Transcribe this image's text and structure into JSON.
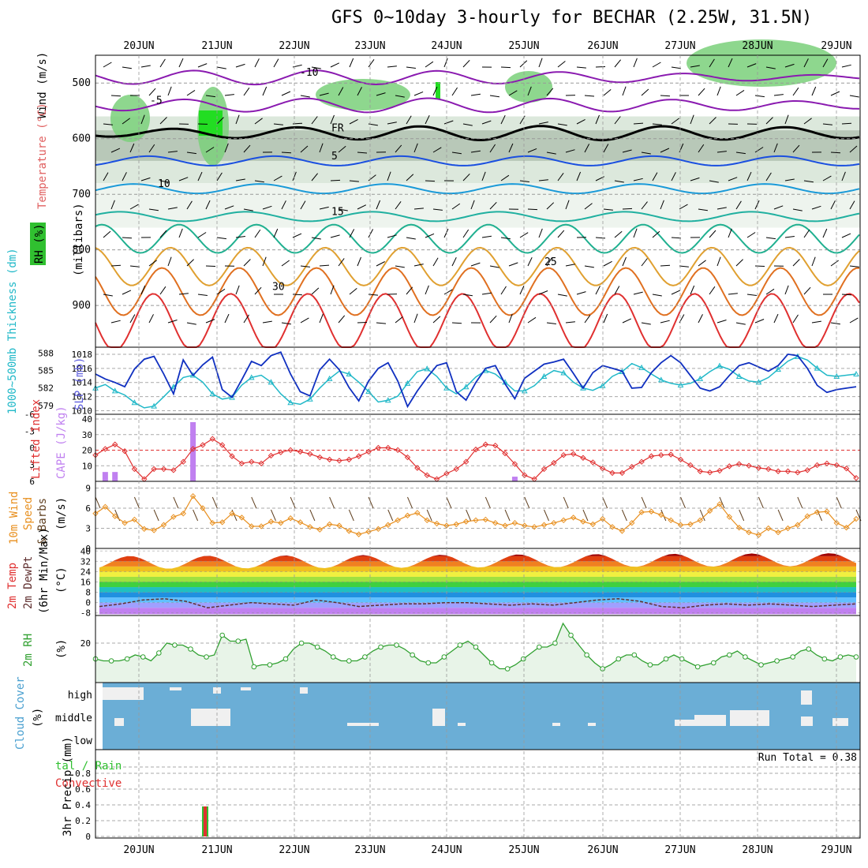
{
  "title": "GFS 0~10day 3-hourly for BECHAR (2.25W, 31.5N)",
  "dates": [
    "20JUN",
    "21JUN",
    "22JUN",
    "23JUN",
    "24JUN",
    "25JUN",
    "26JUN",
    "27JUN",
    "28JUN",
    "29JUN"
  ],
  "panel_labels": {
    "upper_wind": "Wind (m/s)",
    "upper_temp": "Temperature (°C)",
    "upper_rh": "RH (%)",
    "upper_axis": "(millibars)",
    "thick": "1000~500mb Thickness (dm)",
    "slp": "SLP (mb)",
    "li": "Lifted Index",
    "cape": "CAPE (J/kg)",
    "wind10_a": "10m Wind",
    "wind10_b": "Speed",
    "wind10_c": "& Barbs",
    "wind10_unit": "(m/s)",
    "temp2m_a": "2m Temp",
    "temp2m_b": "2m DewPt",
    "temp2m_c": "(6hr Min/Max)",
    "temp2m_unit": "(°C)",
    "rh2m": "2m RH",
    "rh2m_unit": "(%)",
    "cloud": "Cloud Cover",
    "cloud_unit": "(%)",
    "precip_a": "tal / Rain",
    "precip_b": "Convective",
    "precip_axis": "3hr Precip (mm)",
    "run_total": "Run Total = 0.38"
  },
  "chart_data": [
    {
      "type": "area",
      "title": "Upper air cross-section",
      "ylabel": "millibars",
      "y_ticks": [
        "500",
        "600",
        "700",
        "800",
        "900"
      ],
      "ylim": [
        450,
        975
      ],
      "temperature_contours": [
        {
          "label": "-10",
          "pressure": 490,
          "color": "#8a1ab0"
        },
        {
          "label": "-5",
          "pressure": 540,
          "color": "#8a1ab0"
        },
        {
          "label": "FR",
          "pressure": 590,
          "color": "#000000"
        },
        {
          "label": "5",
          "pressure": 640,
          "color": "#1a4fe0"
        },
        {
          "label": "10",
          "pressure": 690,
          "color": "#1a9ad8"
        },
        {
          "label": "15",
          "pressure": 740,
          "color": "#20b0a0"
        },
        {
          "label": "",
          "pressure": 780,
          "color": "#20b090"
        },
        {
          "label": "25",
          "pressure": 830,
          "color": "#e0a030"
        },
        {
          "label": "30",
          "pressure": 875,
          "color": "#e07020"
        },
        {
          "label": "",
          "pressure": 930,
          "color": "#e03030"
        }
      ]
    },
    {
      "type": "line",
      "title": "1000~500mb Thickness / SLP",
      "thickness_ticks": [
        "588",
        "585",
        "582",
        "579"
      ],
      "slp_ticks": [
        "1018",
        "1016",
        "1014",
        "1012",
        "1010"
      ],
      "series": [
        {
          "name": "SLP (mb)",
          "color": "#1030c0",
          "values": [
            1015.2,
            1014.5,
            1014.0,
            1013.4,
            1015.9,
            1017.3,
            1017.7,
            1015.2,
            1012.4,
            1017.2,
            1015.0,
            1016.5,
            1017.6,
            1013.0,
            1011.9,
            1014.4,
            1017.0,
            1016.4,
            1017.8,
            1018.3,
            1015.2,
            1012.7,
            1012.1,
            1015.8,
            1017.3,
            1015.8,
            1013.3,
            1011.4,
            1014.2,
            1016.0,
            1016.8,
            1014.2,
            1010.6,
            1012.8,
            1014.7,
            1016.4,
            1016.8,
            1012.7,
            1011.5,
            1014.0,
            1016.0,
            1016.4,
            1013.8,
            1011.7,
            1014.6,
            1015.6,
            1016.6,
            1016.9,
            1017.3,
            1015.3,
            1013.2,
            1015.4,
            1016.4,
            1016.0,
            1015.6,
            1013.2,
            1013.3,
            1015.4,
            1016.8,
            1017.8,
            1016.8,
            1015.0,
            1013.2,
            1012.8,
            1013.4,
            1015.0,
            1016.4,
            1016.8,
            1016.2,
            1015.6,
            1016.4,
            1018.0,
            1017.8,
            1016.0,
            1013.6,
            1012.6,
            1013.0,
            1013.2,
            1013.4
          ]
        },
        {
          "name": "1000~500mb Thickness (dm)",
          "color": "#20b8c8",
          "values": [
            582.0,
            582.6,
            581.5,
            580.8,
            579.5,
            578.6,
            578.9,
            580.5,
            582.2,
            583.8,
            584.2,
            583.0,
            581.0,
            580.1,
            580.4,
            582.5,
            583.8,
            584.2,
            583.0,
            581.0,
            579.5,
            579.2,
            580.1,
            582.0,
            583.6,
            584.9,
            584.4,
            583.0,
            581.4,
            579.6,
            579.9,
            580.6,
            582.8,
            584.8,
            585.3,
            584.0,
            582.0,
            581.0,
            582.2,
            583.9,
            585.0,
            584.4,
            583.0,
            581.5,
            581.5,
            582.4,
            584.0,
            585.0,
            584.6,
            583.0,
            582.0,
            581.6,
            582.4,
            584.0,
            584.8,
            586.2,
            585.5,
            584.4,
            583.4,
            582.8,
            582.5,
            582.8,
            583.6,
            584.8,
            585.8,
            585.2,
            584.0,
            583.2,
            583.0,
            583.8,
            585.2,
            586.6,
            587.4,
            586.8,
            585.4,
            584.2,
            584.0,
            584.2,
            584.4
          ]
        }
      ]
    },
    {
      "type": "bar",
      "title": "Lifted Index / CAPE",
      "li_ticks": [
        "-6",
        "-3",
        "0",
        "3",
        "6"
      ],
      "cape_ticks": [
        "40",
        "30",
        "20",
        "10"
      ],
      "cape_color": "#c080f0",
      "cape_values": [
        0,
        6,
        6,
        0,
        0,
        0,
        0,
        0,
        0,
        0,
        38,
        0,
        0,
        0,
        0,
        0,
        0,
        0,
        0,
        0,
        0,
        0,
        0,
        0,
        0,
        0,
        0,
        0,
        0,
        0,
        0,
        0,
        0,
        0,
        0,
        0,
        0,
        0,
        0,
        0,
        0,
        0,
        0,
        3,
        0,
        0,
        0,
        0,
        0,
        0,
        0,
        0,
        0,
        0,
        0,
        0,
        0,
        0,
        0,
        0,
        0,
        0,
        0,
        0,
        0,
        0,
        0,
        0,
        0,
        0,
        0,
        0,
        0,
        0,
        0,
        0,
        0,
        0,
        0
      ],
      "li_values": [
        1.3,
        0.2,
        -0.6,
        0.6,
        3.8,
        5.6,
        3.8,
        3.8,
        4.0,
        2.5,
        0.2,
        -0.5,
        -1.6,
        -0.5,
        1.5,
        2.8,
        2.5,
        2.8,
        1.4,
        0.8,
        0.4,
        0.7,
        1.1,
        1.7,
        2.1,
        2.3,
        2.1,
        1.5,
        0.7,
        0.0,
        0.0,
        0.4,
        1.7,
        3.6,
        4.9,
        5.6,
        4.6,
        3.8,
        2.5,
        0.3,
        -0.6,
        -0.4,
        1.0,
        2.9,
        4.9,
        5.6,
        3.8,
        2.7,
        1.3,
        1.1,
        1.8,
        2.6,
        3.7,
        4.5,
        4.5,
        3.4,
        2.5,
        1.5,
        1.3,
        1.2,
        2.1,
        3.1,
        4.2,
        4.4,
        4.1,
        3.3,
        2.9,
        3.2,
        3.6,
        3.8,
        4.2,
        4.2,
        4.4,
        4.0,
        3.1,
        2.8,
        3.1,
        3.7,
        5.4
      ]
    },
    {
      "type": "line",
      "title": "10m Wind Speed",
      "ylabel": "m/s",
      "y_ticks": [
        "9",
        "6",
        "3",
        "0"
      ],
      "ylim": [
        0,
        10
      ],
      "series": [
        {
          "name": "10m Wind",
          "color": "#e89020",
          "values": [
            5.2,
            6.2,
            4.8,
            3.8,
            4.3,
            2.9,
            2.7,
            3.5,
            4.7,
            5.2,
            7.8,
            6.0,
            3.8,
            3.9,
            5.2,
            4.6,
            3.3,
            3.3,
            4.0,
            3.8,
            4.5,
            3.9,
            3.2,
            2.8,
            3.6,
            3.4,
            2.6,
            2.1,
            2.5,
            2.9,
            3.5,
            4.2,
            4.9,
            5.3,
            4.2,
            3.7,
            3.4,
            3.6,
            4.0,
            4.2,
            4.3,
            3.8,
            3.4,
            3.8,
            3.4,
            3.2,
            3.5,
            3.8,
            4.2,
            4.6,
            4.0,
            3.6,
            4.4,
            3.2,
            2.6,
            3.8,
            5.4,
            5.5,
            5.0,
            4.2,
            3.5,
            3.6,
            4.2,
            5.6,
            6.6,
            4.7,
            3.1,
            2.4,
            2.0,
            3.0,
            2.4,
            3.0,
            3.5,
            4.8,
            5.4,
            5.5,
            3.8,
            3.1,
            4.4
          ]
        }
      ]
    },
    {
      "type": "area",
      "title": "2m Temp / 2m DewPt",
      "ylabel": "°C",
      "y_ticks": [
        "40",
        "32",
        "24",
        "16",
        "8",
        "0",
        "-8"
      ],
      "ylim": [
        -10,
        42
      ],
      "temp_max": [
        34,
        35,
        38,
        37,
        36,
        38,
        38,
        39,
        38,
        39,
        40,
        40
      ],
      "temp_min": [
        28,
        27,
        29,
        28,
        27,
        29,
        28,
        28,
        29,
        30,
        30,
        31
      ],
      "dewpoint": [
        -3,
        -1,
        2,
        3,
        1,
        -4,
        -2,
        0,
        -1,
        -2,
        2,
        0,
        -3,
        -2,
        -1,
        -1,
        0,
        0,
        -1,
        -2,
        -1,
        -2,
        0,
        2,
        3,
        1,
        -3,
        -4,
        -2,
        -1,
        -2,
        -1,
        -2,
        -3,
        -2,
        -1
      ]
    },
    {
      "type": "area",
      "title": "2m RH",
      "ylabel": "%",
      "y_ticks": [
        "20"
      ],
      "ylim": [
        0,
        34
      ],
      "series": [
        {
          "name": "2m RH",
          "color": "#30a030",
          "values": [
            12,
            11,
            11,
            11,
            12,
            14,
            13,
            11,
            15,
            20,
            19,
            19,
            17,
            14,
            13,
            14,
            24,
            21,
            21,
            22,
            8,
            9,
            9,
            10,
            12,
            17,
            20,
            20,
            18,
            16,
            13,
            11,
            11,
            11,
            13,
            16,
            18,
            19,
            19,
            17,
            14,
            11,
            10,
            10,
            13,
            16,
            19,
            21,
            18,
            14,
            10,
            7,
            7,
            9,
            12,
            15,
            18,
            18,
            20,
            30,
            24,
            19,
            14,
            10,
            7,
            9,
            12,
            14,
            14,
            11,
            9,
            9,
            12,
            14,
            12,
            10,
            8,
            9,
            10,
            13,
            14,
            16,
            13,
            11,
            9,
            10,
            11,
            12,
            13,
            16,
            17,
            14,
            12,
            11,
            13,
            14,
            13
          ]
        }
      ]
    },
    {
      "type": "heatmap",
      "title": "Cloud Cover",
      "rows": [
        "high",
        "middle",
        "low"
      ],
      "background": "#6baed6"
    },
    {
      "type": "bar",
      "title": "3hr Precip",
      "ylabel": "mm",
      "y_ticks": [
        "0.8",
        "0.6",
        "0.4",
        "0.2",
        "0"
      ],
      "ylim": [
        0,
        1.0
      ],
      "bars": [
        {
          "x": "21JUN",
          "total": 0.38,
          "convective": 0.38
        }
      ],
      "total_color": "#30c030",
      "convective_color": "#e03030"
    }
  ]
}
